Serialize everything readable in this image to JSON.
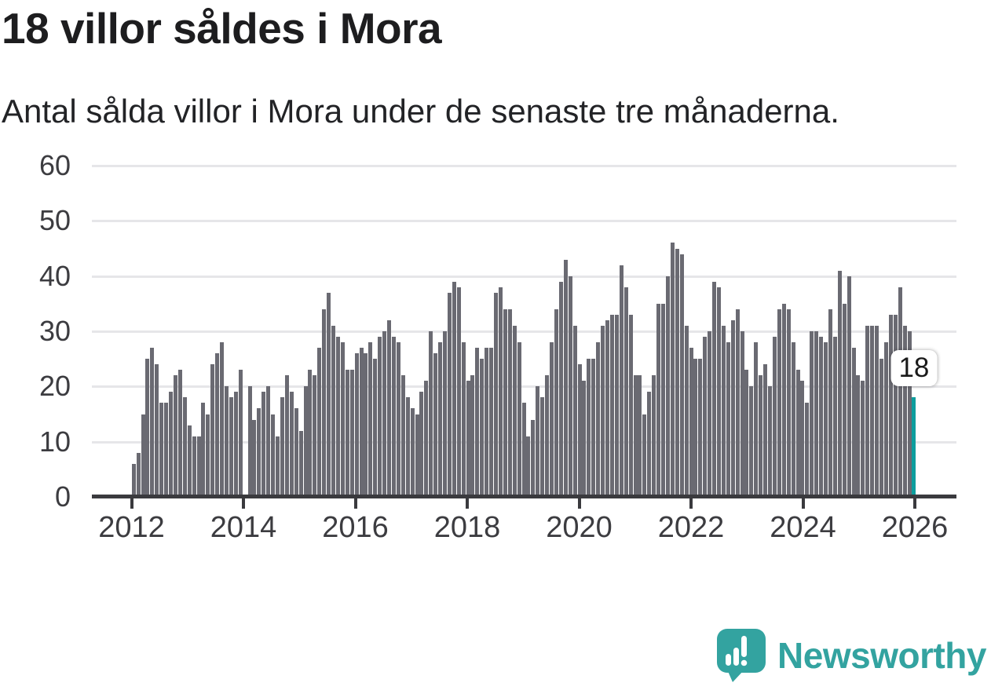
{
  "title": "18 villor såldes i Mora",
  "subtitle": "Antal sålda villor i Mora under de senaste tre månaderna.",
  "branding": {
    "name": "Newsworthy",
    "icon": "newsworthy-speech-bubble-bar-chart-icon",
    "color": "#33a3a0"
  },
  "colors": {
    "bar": "#6a6a72",
    "highlight": "#0d9e9e",
    "grid": "#e6e6e9",
    "axis": "#3a3a3e",
    "label": "#3c3c40",
    "text": "#1d1d1f",
    "background": "#ffffff"
  },
  "chart_data": {
    "type": "bar",
    "title": "18 villor såldes i Mora",
    "subtitle": "Antal sålda villor i Mora under de senaste tre månaderna.",
    "frequency": "monthly",
    "x_start_month": "2012-01",
    "x_end_month": "2026-01",
    "x_tick_labels": [
      "2012",
      "2014",
      "2016",
      "2018",
      "2020",
      "2022",
      "2024",
      "2026"
    ],
    "xlabel": "",
    "ylabel": "",
    "ylim": [
      0,
      60
    ],
    "y_ticks": [
      0,
      10,
      20,
      30,
      40,
      50,
      60
    ],
    "grid": "horizontal",
    "missing_months": [
      "2014-01"
    ],
    "highlight": {
      "month": "2026-01",
      "value": 18,
      "label": "18"
    },
    "values": [
      6,
      8,
      15,
      25,
      27,
      24,
      17,
      17,
      19,
      22,
      23,
      18,
      13,
      11,
      11,
      17,
      15,
      24,
      26,
      28,
      20,
      18,
      19,
      23,
      0,
      20,
      14,
      16,
      19,
      20,
      15,
      11,
      18,
      22,
      19,
      16,
      12,
      20,
      23,
      22,
      27,
      34,
      37,
      31,
      29,
      28,
      23,
      23,
      26,
      27,
      26,
      28,
      25,
      29,
      30,
      32,
      29,
      28,
      22,
      18,
      16,
      15,
      19,
      21,
      30,
      26,
      28,
      30,
      37,
      39,
      38,
      28,
      21,
      22,
      27,
      25,
      27,
      27,
      37,
      38,
      34,
      34,
      31,
      28,
      17,
      11,
      14,
      20,
      18,
      22,
      28,
      34,
      39,
      43,
      40,
      31,
      24,
      21,
      25,
      25,
      28,
      31,
      32,
      33,
      33,
      42,
      38,
      33,
      22,
      22,
      15,
      19,
      22,
      35,
      35,
      40,
      46,
      45,
      44,
      31,
      27,
      25,
      25,
      29,
      30,
      39,
      38,
      31,
      28,
      32,
      34,
      30,
      23,
      20,
      28,
      22,
      24,
      20,
      29,
      34,
      35,
      34,
      28,
      23,
      21,
      17,
      30,
      30,
      29,
      28,
      34,
      29,
      41,
      35,
      40,
      27,
      22,
      21,
      31,
      31,
      31,
      25,
      28,
      33,
      33,
      38,
      31,
      30,
      18
    ]
  }
}
